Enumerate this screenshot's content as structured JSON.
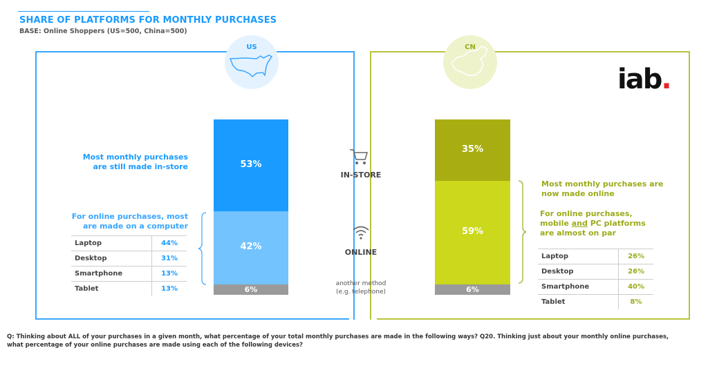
{
  "header": {
    "title": "SHARE OF PLATFORMS FOR MONTHLY PURCHASES",
    "base": "BASE: Online Shoppers (US=500, China=500)"
  },
  "logo": {
    "text": "iab",
    "dot": "."
  },
  "colors": {
    "us_instore": "#1a9bff",
    "us_online": "#73c3ff",
    "cn_instore": "#a8ae12",
    "cn_online": "#cbd81c",
    "other": "#9a9a9a",
    "us_accent": "#1a9bff",
    "cn_accent": "#9bab1a"
  },
  "center": {
    "instore_label": "IN-STORE",
    "online_label": "ONLINE",
    "other_label_1": "another method",
    "other_label_2": "(e.g. telephone)",
    "cart_icon": "shopping-cart-icon",
    "wifi_icon": "wifi-icon"
  },
  "us": {
    "label": "US",
    "note_instore": "Most monthly purchases are still made in-store",
    "note_online": "For online purchases, most are made on a computer",
    "devices": [
      {
        "name": "Laptop",
        "value": "44%"
      },
      {
        "name": "Desktop",
        "value": "31%"
      },
      {
        "name": "Smartphone",
        "value": "13%"
      },
      {
        "name": "Tablet",
        "value": "13%"
      }
    ]
  },
  "cn": {
    "label": "CN",
    "note_online": "Most monthly purchases are now made online",
    "note_devices_1": "For online purchases,",
    "note_devices_2": "mobile ",
    "note_devices_and": "and",
    "note_devices_3": " PC platforms",
    "note_devices_4": "are almost on par",
    "devices": [
      {
        "name": "Laptop",
        "value": "26%"
      },
      {
        "name": "Desktop",
        "value": "26%"
      },
      {
        "name": "Smartphone",
        "value": "40%"
      },
      {
        "name": "Tablet",
        "value": "8%"
      }
    ]
  },
  "chart_data": {
    "type": "bar",
    "stacked": true,
    "categories": [
      "US",
      "CN"
    ],
    "series": [
      {
        "name": "IN-STORE",
        "values": [
          53,
          35
        ],
        "labels": [
          "53%",
          "35%"
        ]
      },
      {
        "name": "ONLINE",
        "values": [
          42,
          59
        ],
        "labels": [
          "42%",
          "59%"
        ]
      },
      {
        "name": "another method (e.g. telephone)",
        "values": [
          6,
          6
        ],
        "labels": [
          "6%",
          "6%"
        ]
      }
    ]
  },
  "question": "Q:  Thinking about ALL of your purchases in a given month, what percentage of your total monthly purchases are made in the following ways? Q20. Thinking just about your monthly online purchases, what percentage of your online purchases are made using each of the following devices?"
}
